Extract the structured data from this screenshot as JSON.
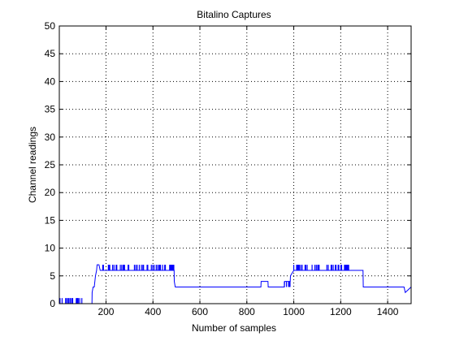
{
  "chart_data": {
    "type": "line",
    "title": "Bitalino Captures",
    "xlabel": "Number of samples",
    "ylabel": "Channel readings",
    "xlim": [
      1,
      1500
    ],
    "ylim": [
      0,
      50
    ],
    "xticks": [
      200,
      400,
      600,
      800,
      1000,
      1200,
      1400
    ],
    "yticks": [
      0,
      5,
      10,
      15,
      20,
      25,
      30,
      35,
      40,
      45,
      50
    ],
    "grid": true,
    "legend": "none",
    "series": [
      {
        "color": "#0000ff",
        "x": [
          1,
          140,
          141,
          145,
          150,
          155,
          160,
          162,
          170,
          175,
          180,
          490,
          491,
          495,
          860,
          861,
          890,
          891,
          960,
          961,
          985,
          986,
          1000,
          1295,
          1296,
          1470,
          1475,
          1500
        ],
        "y": [
          0,
          0,
          2,
          3,
          3,
          5,
          6,
          7,
          7,
          6,
          6,
          6,
          4,
          3,
          3,
          4,
          4,
          3,
          3,
          4,
          4,
          5,
          6,
          6,
          3,
          3,
          2,
          3
        ]
      }
    ],
    "noise_regions": [
      {
        "x_start": 1,
        "x_end": 105,
        "low": 0,
        "high": 1
      },
      {
        "x_start": 180,
        "x_end": 490,
        "low": 6,
        "high": 7
      },
      {
        "x_start": 960,
        "x_end": 985,
        "low": 3,
        "high": 4
      },
      {
        "x_start": 1000,
        "x_end": 1240,
        "low": 6,
        "high": 7
      }
    ]
  }
}
